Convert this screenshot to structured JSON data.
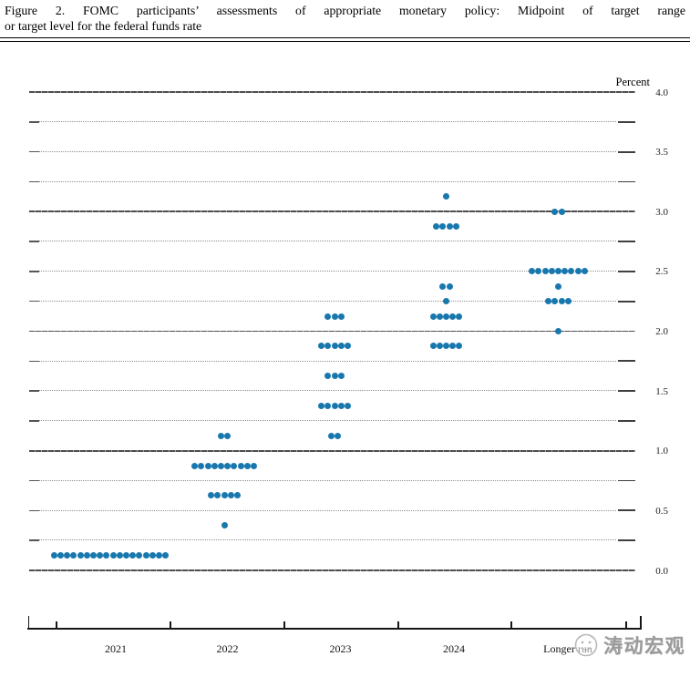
{
  "header": {
    "title_line1": "Figure 2.  FOMC participants’ assessments of appropriate monetary policy:  Midpoint of target range",
    "title_line2": "or target level for the federal funds rate"
  },
  "chart_data": {
    "type": "scatter",
    "title": "FOMC participants’ assessments of appropriate monetary policy: Midpoint of target range or target level for the federal funds rate",
    "ylabel": "Percent",
    "ylim": [
      0.0,
      4.0
    ],
    "grid_interval": 0.25,
    "grid_style": "solid lines at whole percents, dotted lines at quarter percents, grid on",
    "ytick_labels": [
      "4.0",
      "3.5",
      "3.0",
      "2.5",
      "2.0",
      "1.5",
      "1.0",
      "0.5",
      "0.0"
    ],
    "categories": [
      "2021",
      "2022",
      "2023",
      "2024",
      "Longer run"
    ],
    "legend": "none",
    "series": [
      {
        "name": "2021",
        "dots": [
          {
            "rate": 0.125,
            "count": 18
          }
        ]
      },
      {
        "name": "2022",
        "dots": [
          {
            "rate": 1.125,
            "count": 2
          },
          {
            "rate": 0.875,
            "count": 10
          },
          {
            "rate": 0.625,
            "count": 5
          },
          {
            "rate": 0.375,
            "count": 1
          }
        ]
      },
      {
        "name": "2023",
        "dots": [
          {
            "rate": 2.125,
            "count": 3
          },
          {
            "rate": 1.875,
            "count": 5
          },
          {
            "rate": 1.625,
            "count": 3
          },
          {
            "rate": 1.375,
            "count": 5
          },
          {
            "rate": 1.125,
            "count": 2
          }
        ]
      },
      {
        "name": "2024",
        "dots": [
          {
            "rate": 3.125,
            "count": 1
          },
          {
            "rate": 2.875,
            "count": 4
          },
          {
            "rate": 2.375,
            "count": 2
          },
          {
            "rate": 2.25,
            "count": 1
          },
          {
            "rate": 2.125,
            "count": 5
          },
          {
            "rate": 1.875,
            "count": 5
          }
        ]
      },
      {
        "name": "Longer run",
        "dots": [
          {
            "rate": 3.0,
            "count": 2
          },
          {
            "rate": 2.5,
            "count": 9
          },
          {
            "rate": 2.375,
            "count": 1
          },
          {
            "rate": 2.25,
            "count": 4
          },
          {
            "rate": 2.0,
            "count": 1
          }
        ]
      }
    ],
    "colors": {
      "dot": "#1878ae",
      "grid_solid": "#4e4e4e",
      "grid_dotted": "#8f8f8f",
      "axis": "#161616"
    }
  },
  "watermark": {
    "logo": "taodong-logo",
    "text": "涛动宏观"
  }
}
